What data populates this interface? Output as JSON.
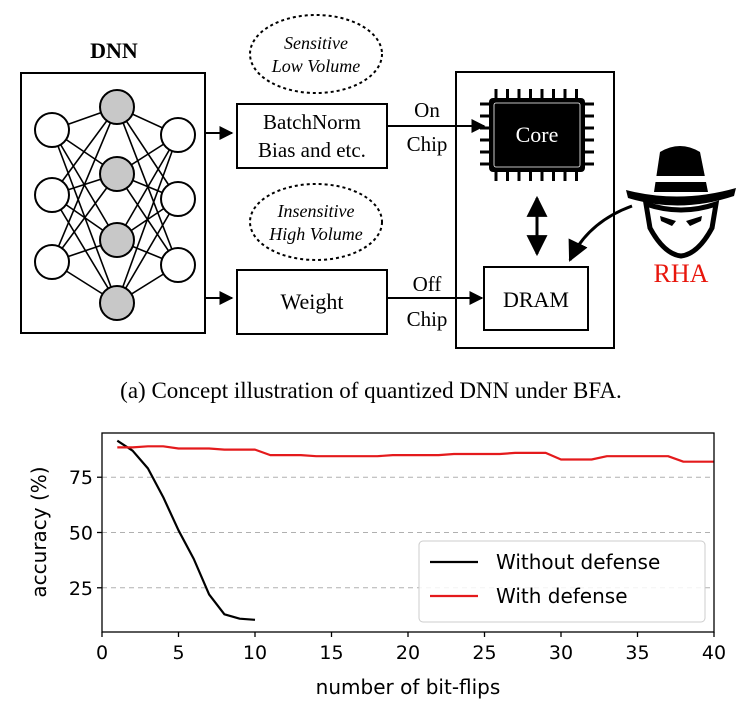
{
  "figure_a": {
    "dnn_label": "DNN",
    "sensitive_line1": "Sensitive",
    "sensitive_line2": "Low Volume",
    "insensitive_line1": "Insensitive",
    "insensitive_line2": "High Volume",
    "batchnorm_line1": "BatchNorm",
    "batchnorm_line2": "Bias and etc.",
    "weight_label": "Weight",
    "on_chip_line1": "On",
    "on_chip_line2": "Chip",
    "off_chip_line1": "Off",
    "off_chip_line2": "Chip",
    "core_label": "Core",
    "dram_label": "DRAM",
    "attacker_label": "RHA",
    "attacker_color": "#e8160c",
    "caption": "(a) Concept illustration of quantized DNN under BFA."
  },
  "chart_data": {
    "type": "line",
    "xlabel": "number of bit-flips",
    "ylabel": "accuracy (%)",
    "xlim": [
      0,
      40
    ],
    "ylim": [
      5,
      95
    ],
    "xticks": [
      "0",
      "5",
      "10",
      "15",
      "20",
      "25",
      "30",
      "35",
      "40"
    ],
    "yticks": [
      "25",
      "50",
      "75"
    ],
    "grid": "horizontal dashed at y ticks",
    "legend_position": "lower-right",
    "series": [
      {
        "name": "Without defense",
        "color": "#000000",
        "x": [
          1,
          2,
          3,
          4,
          5,
          6,
          7,
          8,
          9,
          10
        ],
        "y": [
          91.5,
          87,
          79,
          66,
          51,
          38,
          22,
          13,
          11,
          10.5
        ]
      },
      {
        "name": "With defense",
        "color": "#e41a1c",
        "x": [
          1,
          2,
          3,
          4,
          5,
          6,
          7,
          8,
          9,
          10,
          11,
          12,
          13,
          14,
          15,
          16,
          17,
          18,
          19,
          20,
          21,
          22,
          23,
          24,
          25,
          26,
          27,
          28,
          29,
          30,
          31,
          32,
          33,
          34,
          35,
          36,
          37,
          38,
          39,
          40
        ],
        "y": [
          88.5,
          88.5,
          89,
          89,
          88,
          88,
          88,
          87.5,
          87.5,
          87.5,
          85,
          85,
          85,
          84.5,
          84.5,
          84.5,
          84.5,
          84.5,
          85,
          85,
          85,
          85,
          85.5,
          85.5,
          85.5,
          85.5,
          86,
          86,
          86,
          83,
          83,
          83,
          84.5,
          84.5,
          84.5,
          84.5,
          84.5,
          82,
          82,
          82
        ]
      }
    ]
  }
}
